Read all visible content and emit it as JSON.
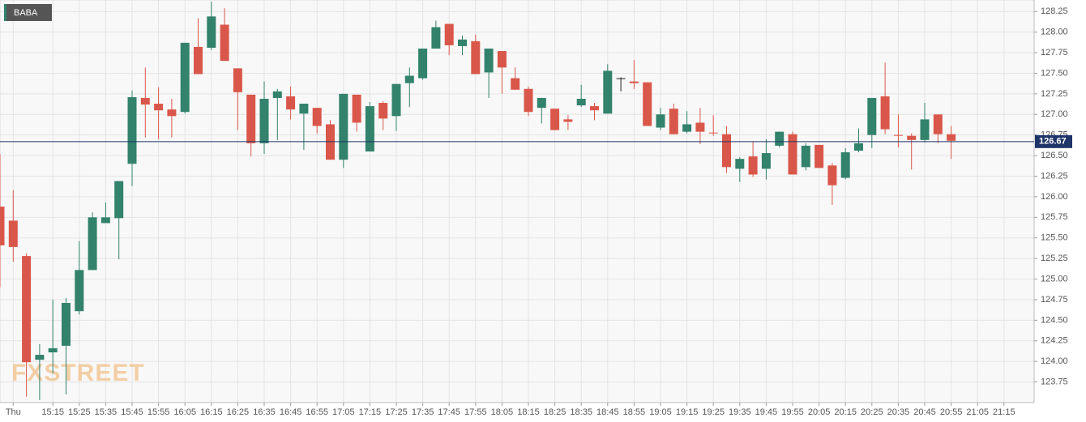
{
  "chart_data": {
    "type": "candlestick",
    "symbol": "BABA",
    "watermark": "FXSTREET",
    "up_color": "#32826c",
    "down_color": "#d9574a",
    "doji_color": "#222222",
    "last_price": 126.67,
    "last_price_color": "#1f3468",
    "grid": true,
    "categories": [
      null,
      "Thu",
      null,
      null,
      "15:15",
      null,
      "15:25",
      null,
      "15:35",
      null,
      "15:45",
      null,
      "15:55",
      null,
      "16:05",
      null,
      "16:15",
      null,
      "16:25",
      null,
      "16:35",
      null,
      "16:45",
      null,
      "16:55",
      null,
      "17:05",
      null,
      "17:15",
      null,
      "17:25",
      null,
      "17:35",
      null,
      "17:45",
      null,
      "17:55",
      null,
      "18:05",
      null,
      "18:15",
      null,
      "18:25",
      null,
      "18:35",
      null,
      "18:45",
      null,
      "18:55",
      null,
      "19:05",
      null,
      "19:15",
      null,
      "19:25",
      null,
      "19:35",
      null,
      "19:45",
      null,
      "19:55",
      null,
      "20:05",
      null,
      "20:15",
      null,
      "20:25",
      null,
      "20:35",
      null,
      "20:45",
      null,
      "20:55",
      null,
      "21:05",
      null,
      "21:15",
      null,
      null
    ],
    "open": [
      125.88,
      125.71,
      125.28,
      124.02,
      124.11,
      124.19,
      124.61,
      125.11,
      125.68,
      125.74,
      126.4,
      127.2,
      127.13,
      127.06,
      127.03,
      127.82,
      127.81,
      128.09,
      127.56,
      127.24,
      126.65,
      127.2,
      127.22,
      127.01,
      127.08,
      126.88,
      126.45,
      127.24,
      126.55,
      127.14,
      126.98,
      127.38,
      127.44,
      127.8,
      128.1,
      127.83,
      127.89,
      127.51,
      127.77,
      127.44,
      127.31,
      127.08,
      127.07,
      126.94,
      127.11,
      127.1,
      127.01,
      127.44,
      127.4,
      127.39,
      126.84,
      127.07,
      126.79,
      126.9,
      126.78,
      126.76,
      126.34,
      126.49,
      126.34,
      126.62,
      126.76,
      126.36,
      126.63,
      126.38,
      126.23,
      126.56,
      126.75,
      127.22,
      126.75,
      126.74,
      126.69,
      127.0,
      126.76,
      null,
      null,
      null,
      null,
      null,
      null
    ],
    "high": [
      126.52,
      126.08,
      125.31,
      124.21,
      124.75,
      124.77,
      125.46,
      125.81,
      125.93,
      126.19,
      127.29,
      127.57,
      127.33,
      127.19,
      127.87,
      128.17,
      128.37,
      128.29,
      127.56,
      127.24,
      127.4,
      127.31,
      127.34,
      127.13,
      127.08,
      126.93,
      127.25,
      127.24,
      127.15,
      127.16,
      127.37,
      127.57,
      127.8,
      128.14,
      128.1,
      127.96,
      127.97,
      127.8,
      127.77,
      127.57,
      127.34,
      127.2,
      127.07,
      126.99,
      127.36,
      127.14,
      127.61,
      127.45,
      127.66,
      127.39,
      127.08,
      127.13,
      127.04,
      127.08,
      126.99,
      126.86,
      126.48,
      126.67,
      126.7,
      126.79,
      126.79,
      126.65,
      126.63,
      126.41,
      126.59,
      126.83,
      127.2,
      127.63,
      127.0,
      126.77,
      127.14,
      127.0,
      126.86,
      null,
      null,
      null,
      null,
      null,
      null
    ],
    "low": [
      124.9,
      125.21,
      123.57,
      123.53,
      123.85,
      123.6,
      124.57,
      125.11,
      125.68,
      125.24,
      126.13,
      126.72,
      126.7,
      126.72,
      127.01,
      127.49,
      127.78,
      127.65,
      126.81,
      126.49,
      126.52,
      126.69,
      126.94,
      126.57,
      126.77,
      126.45,
      126.35,
      126.79,
      126.55,
      126.81,
      126.8,
      127.09,
      127.42,
      127.8,
      127.72,
      127.72,
      127.49,
      127.2,
      127.25,
      127.3,
      126.98,
      126.89,
      126.81,
      126.81,
      127.09,
      126.93,
      127.01,
      127.28,
      127.31,
      126.86,
      126.81,
      126.76,
      126.77,
      126.64,
      126.74,
      126.29,
      126.18,
      126.24,
      126.21,
      126.6,
      126.27,
      126.32,
      126.35,
      125.9,
      126.21,
      126.54,
      126.59,
      126.76,
      126.6,
      126.33,
      126.66,
      126.65,
      126.46,
      null,
      null,
      null,
      null,
      null,
      null
    ],
    "close": [
      125.41,
      125.39,
      123.99,
      124.08,
      124.16,
      124.71,
      125.11,
      125.75,
      125.75,
      126.19,
      127.21,
      127.12,
      127.05,
      126.98,
      127.87,
      127.49,
      128.19,
      127.65,
      127.27,
      126.65,
      127.19,
      127.28,
      127.06,
      127.13,
      126.86,
      126.45,
      127.25,
      126.9,
      127.1,
      126.95,
      127.37,
      127.47,
      127.8,
      128.06,
      127.84,
      127.91,
      127.49,
      127.8,
      127.57,
      127.3,
      127.03,
      127.2,
      126.81,
      126.91,
      127.19,
      127.05,
      127.53,
      127.44,
      127.38,
      126.86,
      127.0,
      126.76,
      126.88,
      126.79,
      126.77,
      126.36,
      126.46,
      126.27,
      126.53,
      126.79,
      126.27,
      126.62,
      126.35,
      126.14,
      126.54,
      126.65,
      127.2,
      126.82,
      126.74,
      126.69,
      126.94,
      126.76,
      126.68,
      null,
      null,
      null,
      null,
      null,
      null
    ],
    "ylim": [
      123.5,
      128.39
    ],
    "yticks": [
      {
        "value": 123.75,
        "label": "123.75"
      },
      {
        "value": 124,
        "label": "124.00"
      },
      {
        "value": 124.25,
        "label": "124.25"
      },
      {
        "value": 124.5,
        "label": "124.50"
      },
      {
        "value": 124.75,
        "label": "124.75"
      },
      {
        "value": 125,
        "label": "125.00"
      },
      {
        "value": 125.25,
        "label": "125.25"
      },
      {
        "value": 125.5,
        "label": "125.50"
      },
      {
        "value": 125.75,
        "label": "125.75"
      },
      {
        "value": 126,
        "label": "126.00"
      },
      {
        "value": 126.25,
        "label": "126.25"
      },
      {
        "value": 126.5,
        "label": "126.50"
      },
      {
        "value": 126.75,
        "label": "126.75"
      },
      {
        "value": 127,
        "label": "127.00"
      },
      {
        "value": 127.25,
        "label": "127.25"
      },
      {
        "value": 127.5,
        "label": "127.50"
      },
      {
        "value": 127.75,
        "label": "127.75"
      },
      {
        "value": 128,
        "label": "128.00"
      },
      {
        "value": 128.25,
        "label": "128.25"
      }
    ]
  }
}
